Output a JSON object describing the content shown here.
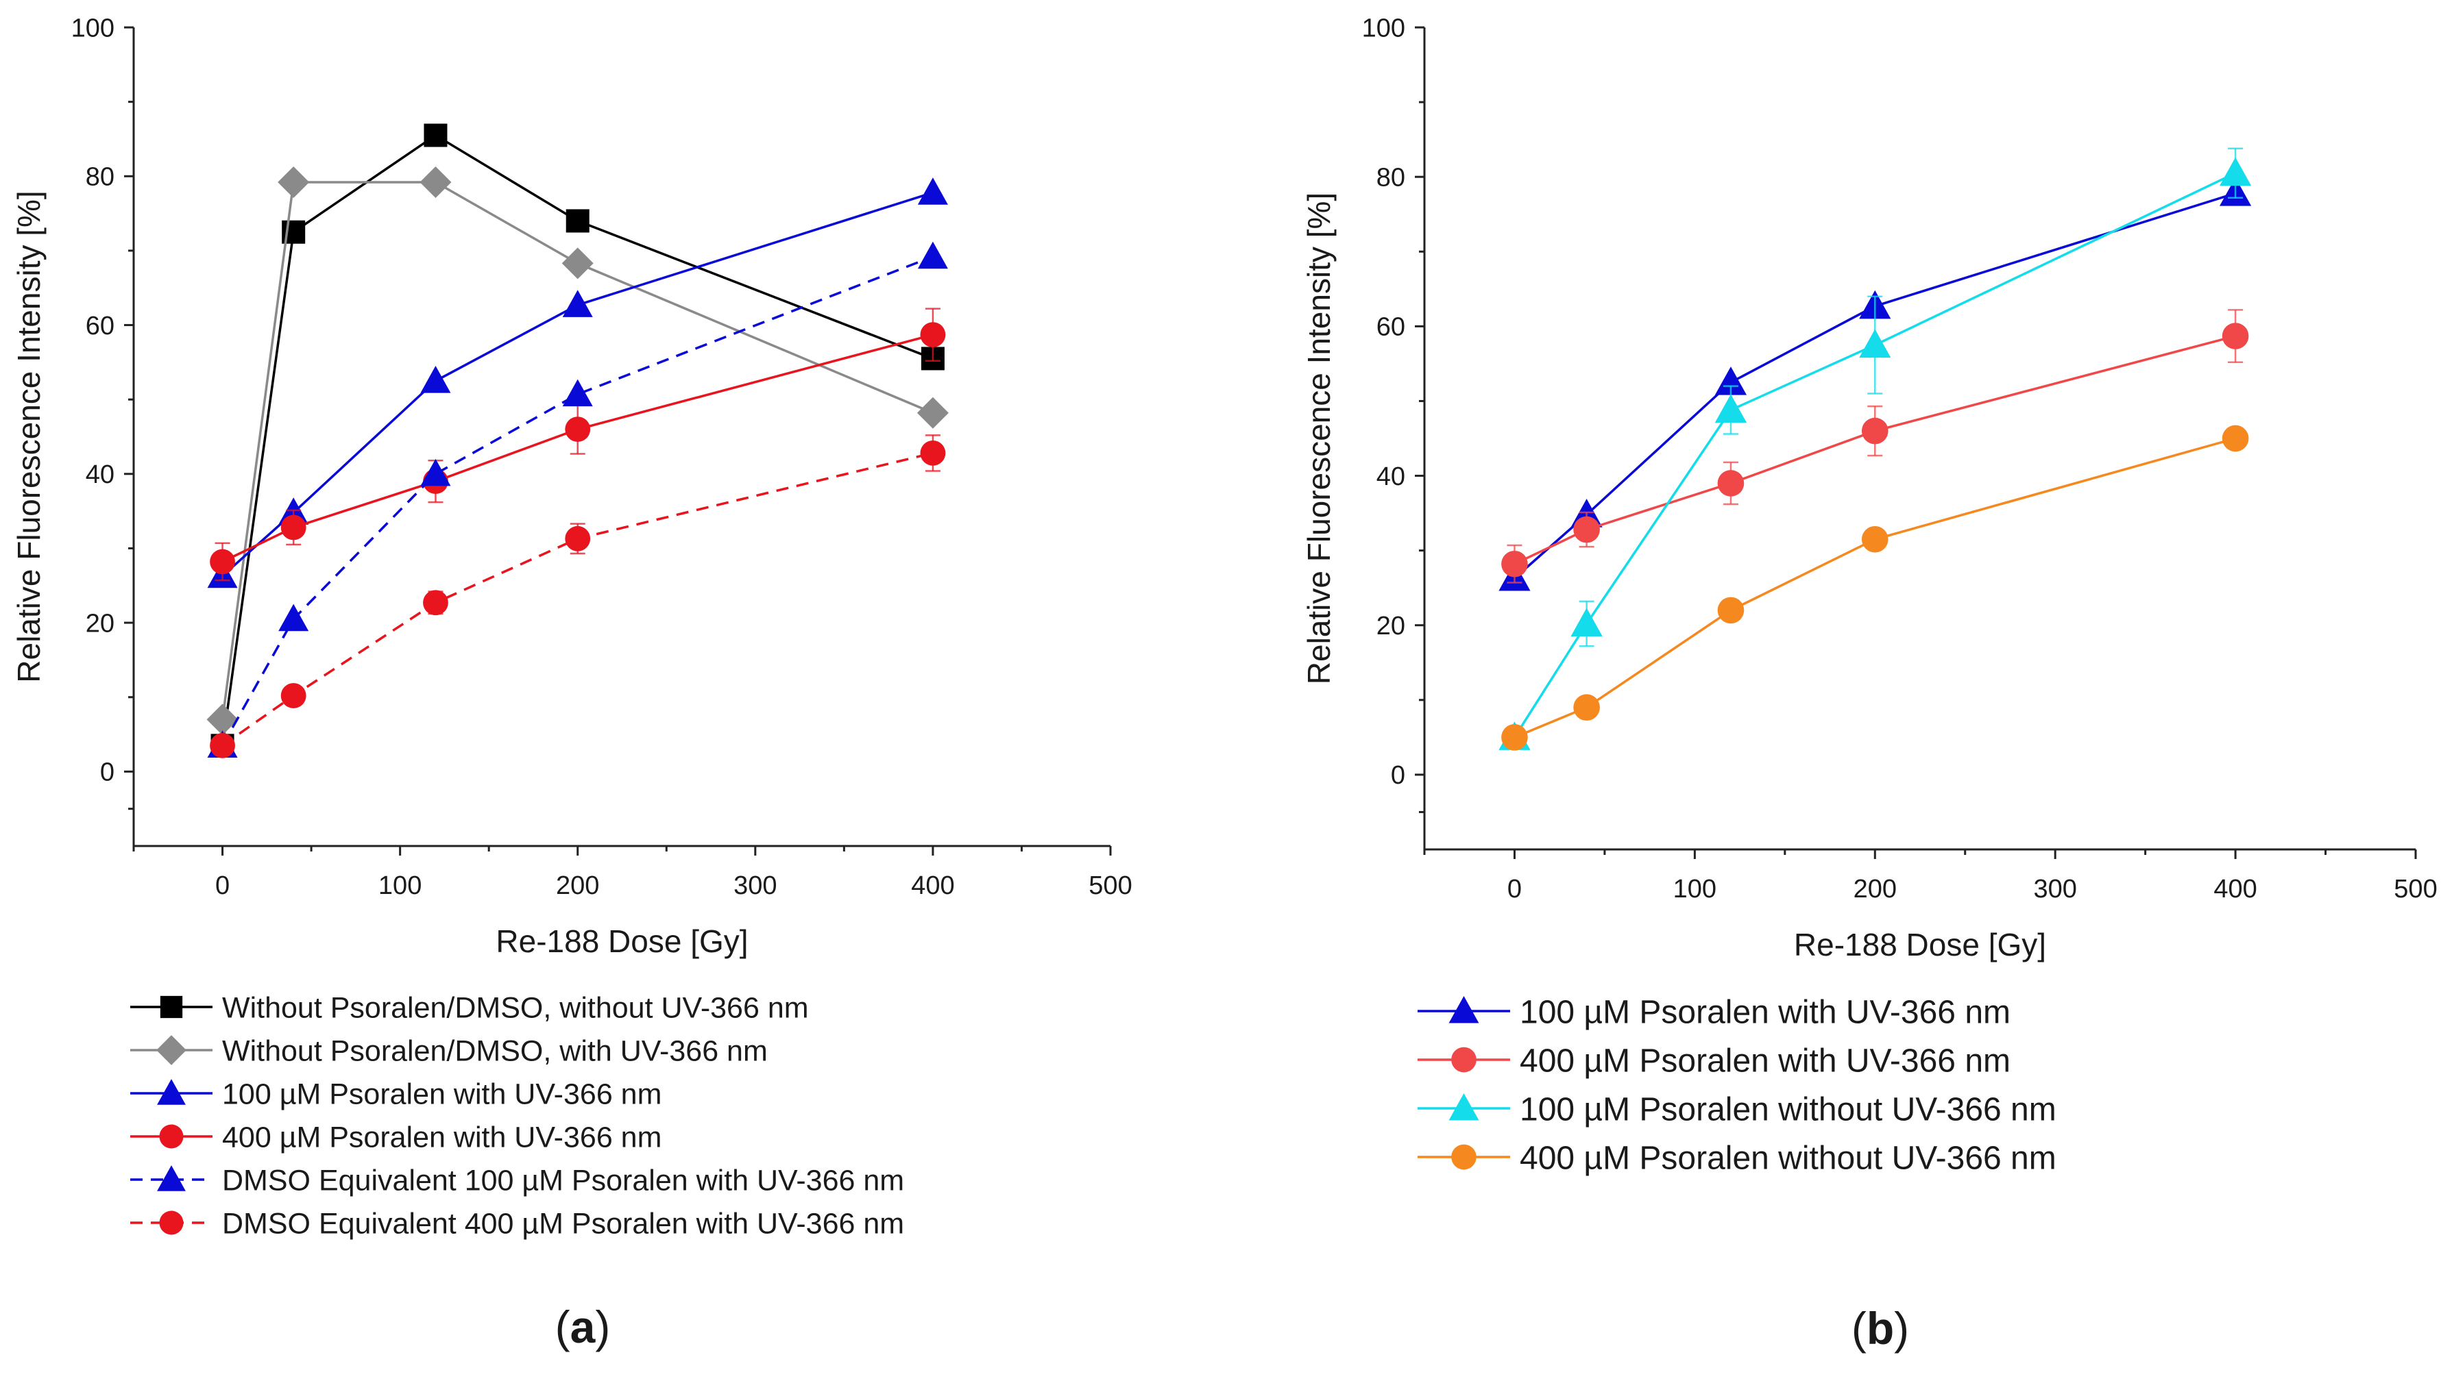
{
  "chart_data": [
    {
      "type": "line",
      "panel_label": "a",
      "xlabel": "Re-188 Dose [Gy]",
      "ylabel": "Relative Fluorescence Intensity [%]",
      "xlim": [
        -50,
        500
      ],
      "ylim": [
        -10,
        100
      ],
      "xticks": [
        0,
        100,
        200,
        300,
        400,
        500
      ],
      "yticks": [
        0,
        20,
        40,
        60,
        80,
        100
      ],
      "xtick_labels": [
        "0",
        "100",
        "200",
        "300",
        "400",
        "500"
      ],
      "ytick_labels": [
        "0",
        "20",
        "40",
        "60",
        "80",
        "100"
      ],
      "grid": false,
      "legend_position": "below",
      "series": [
        {
          "name": "Without Psoralen/DMSO, without UV-366 nm",
          "color": "#000000",
          "marker": "square",
          "dash": "solid",
          "x": [
            0,
            40,
            120,
            200,
            400
          ],
          "y": [
            3.5,
            72.5,
            85.5,
            74,
            55.5
          ],
          "err": [
            0,
            0,
            0,
            0,
            1.0
          ]
        },
        {
          "name": "Without Psoralen/DMSO, with UV-366 nm",
          "color": "#8a8a8a",
          "marker": "diamond",
          "dash": "solid",
          "x": [
            0,
            40,
            120,
            200,
            400
          ],
          "y": [
            7,
            79.2,
            79.2,
            68.3,
            48.2
          ],
          "err": [
            0,
            0,
            0,
            0,
            0
          ]
        },
        {
          "name": "100 µM Psoralen with UV-366 nm",
          "color": "#0a0ad6",
          "marker": "triangle",
          "dash": "solid",
          "x": [
            0,
            40,
            120,
            200,
            400
          ],
          "y": [
            26.3,
            34.8,
            52.5,
            62.7,
            77.8
          ],
          "err": [
            0,
            0,
            0,
            0,
            0
          ]
        },
        {
          "name": "400 µM Psoralen with UV-366 nm",
          "color": "#e8141e",
          "marker": "circle",
          "dash": "solid",
          "x": [
            0,
            40,
            120,
            200,
            400
          ],
          "y": [
            28.2,
            32.8,
            39,
            46,
            58.7
          ],
          "err": [
            2.5,
            2.3,
            2.8,
            3.3,
            3.5
          ]
        },
        {
          "name": "DMSO Equivalent 100 µM Psoralen with UV-366 nm",
          "color": "#0a0ad6",
          "marker": "triangle",
          "dash": "dashed",
          "x": [
            0,
            40,
            120,
            200,
            400
          ],
          "y": [
            3.5,
            20.5,
            40,
            50.7,
            69.2
          ],
          "err": [
            0,
            0,
            0,
            0,
            0
          ]
        },
        {
          "name": "DMSO Equivalent 400 µM Psoralen with UV-366 nm",
          "color": "#e8141e",
          "marker": "circle",
          "dash": "dashed",
          "x": [
            0,
            40,
            120,
            200,
            400
          ],
          "y": [
            3.5,
            10.2,
            22.7,
            31.3,
            42.8
          ],
          "err": [
            0.8,
            0.5,
            1.5,
            2.0,
            2.4
          ]
        }
      ]
    },
    {
      "type": "line",
      "panel_label": "b",
      "xlabel": "Re-188 Dose [Gy]",
      "ylabel": "Relative Fluorescence Intensity [%]",
      "xlim": [
        -50,
        500
      ],
      "ylim": [
        -10,
        100
      ],
      "xticks": [
        0,
        100,
        200,
        300,
        400,
        500
      ],
      "yticks": [
        0,
        20,
        40,
        60,
        80,
        100
      ],
      "xtick_labels": [
        "0",
        "100",
        "200",
        "300",
        "400",
        "500"
      ],
      "ytick_labels": [
        "0",
        "20",
        "40",
        "60",
        "80",
        "100"
      ],
      "grid": false,
      "legend_position": "below",
      "series": [
        {
          "name": "100 µM Psoralen with UV-366 nm",
          "color": "#0a0ad6",
          "marker": "triangle",
          "dash": "solid",
          "x": [
            0,
            40,
            120,
            200,
            400
          ],
          "y": [
            26.3,
            34.8,
            52.5,
            62.7,
            77.8
          ],
          "err": [
            0,
            0,
            0,
            0,
            0
          ]
        },
        {
          "name": "400 µM Psoralen with UV-366 nm",
          "color": "#f04848",
          "marker": "circle",
          "dash": "solid",
          "x": [
            0,
            40,
            120,
            200,
            400
          ],
          "y": [
            28.2,
            32.8,
            39,
            46,
            58.7
          ],
          "err": [
            2.5,
            2.3,
            2.8,
            3.3,
            3.5
          ]
        },
        {
          "name": "100 µM Psoralen without UV-366 nm",
          "color": "#14dcea",
          "marker": "triangle",
          "dash": "solid",
          "x": [
            0,
            40,
            120,
            200,
            400
          ],
          "y": [
            5,
            20.2,
            48.8,
            57.5,
            80.5
          ],
          "err": [
            0.5,
            3.0,
            3.2,
            6.5,
            3.3
          ]
        },
        {
          "name": "400 µM Psoralen without UV-366 nm",
          "color": "#f5891f",
          "marker": "circle",
          "dash": "solid",
          "x": [
            0,
            40,
            120,
            200,
            400
          ],
          "y": [
            5,
            9,
            22,
            31.5,
            45
          ],
          "err": [
            0,
            0,
            0,
            0,
            0
          ]
        }
      ]
    }
  ]
}
